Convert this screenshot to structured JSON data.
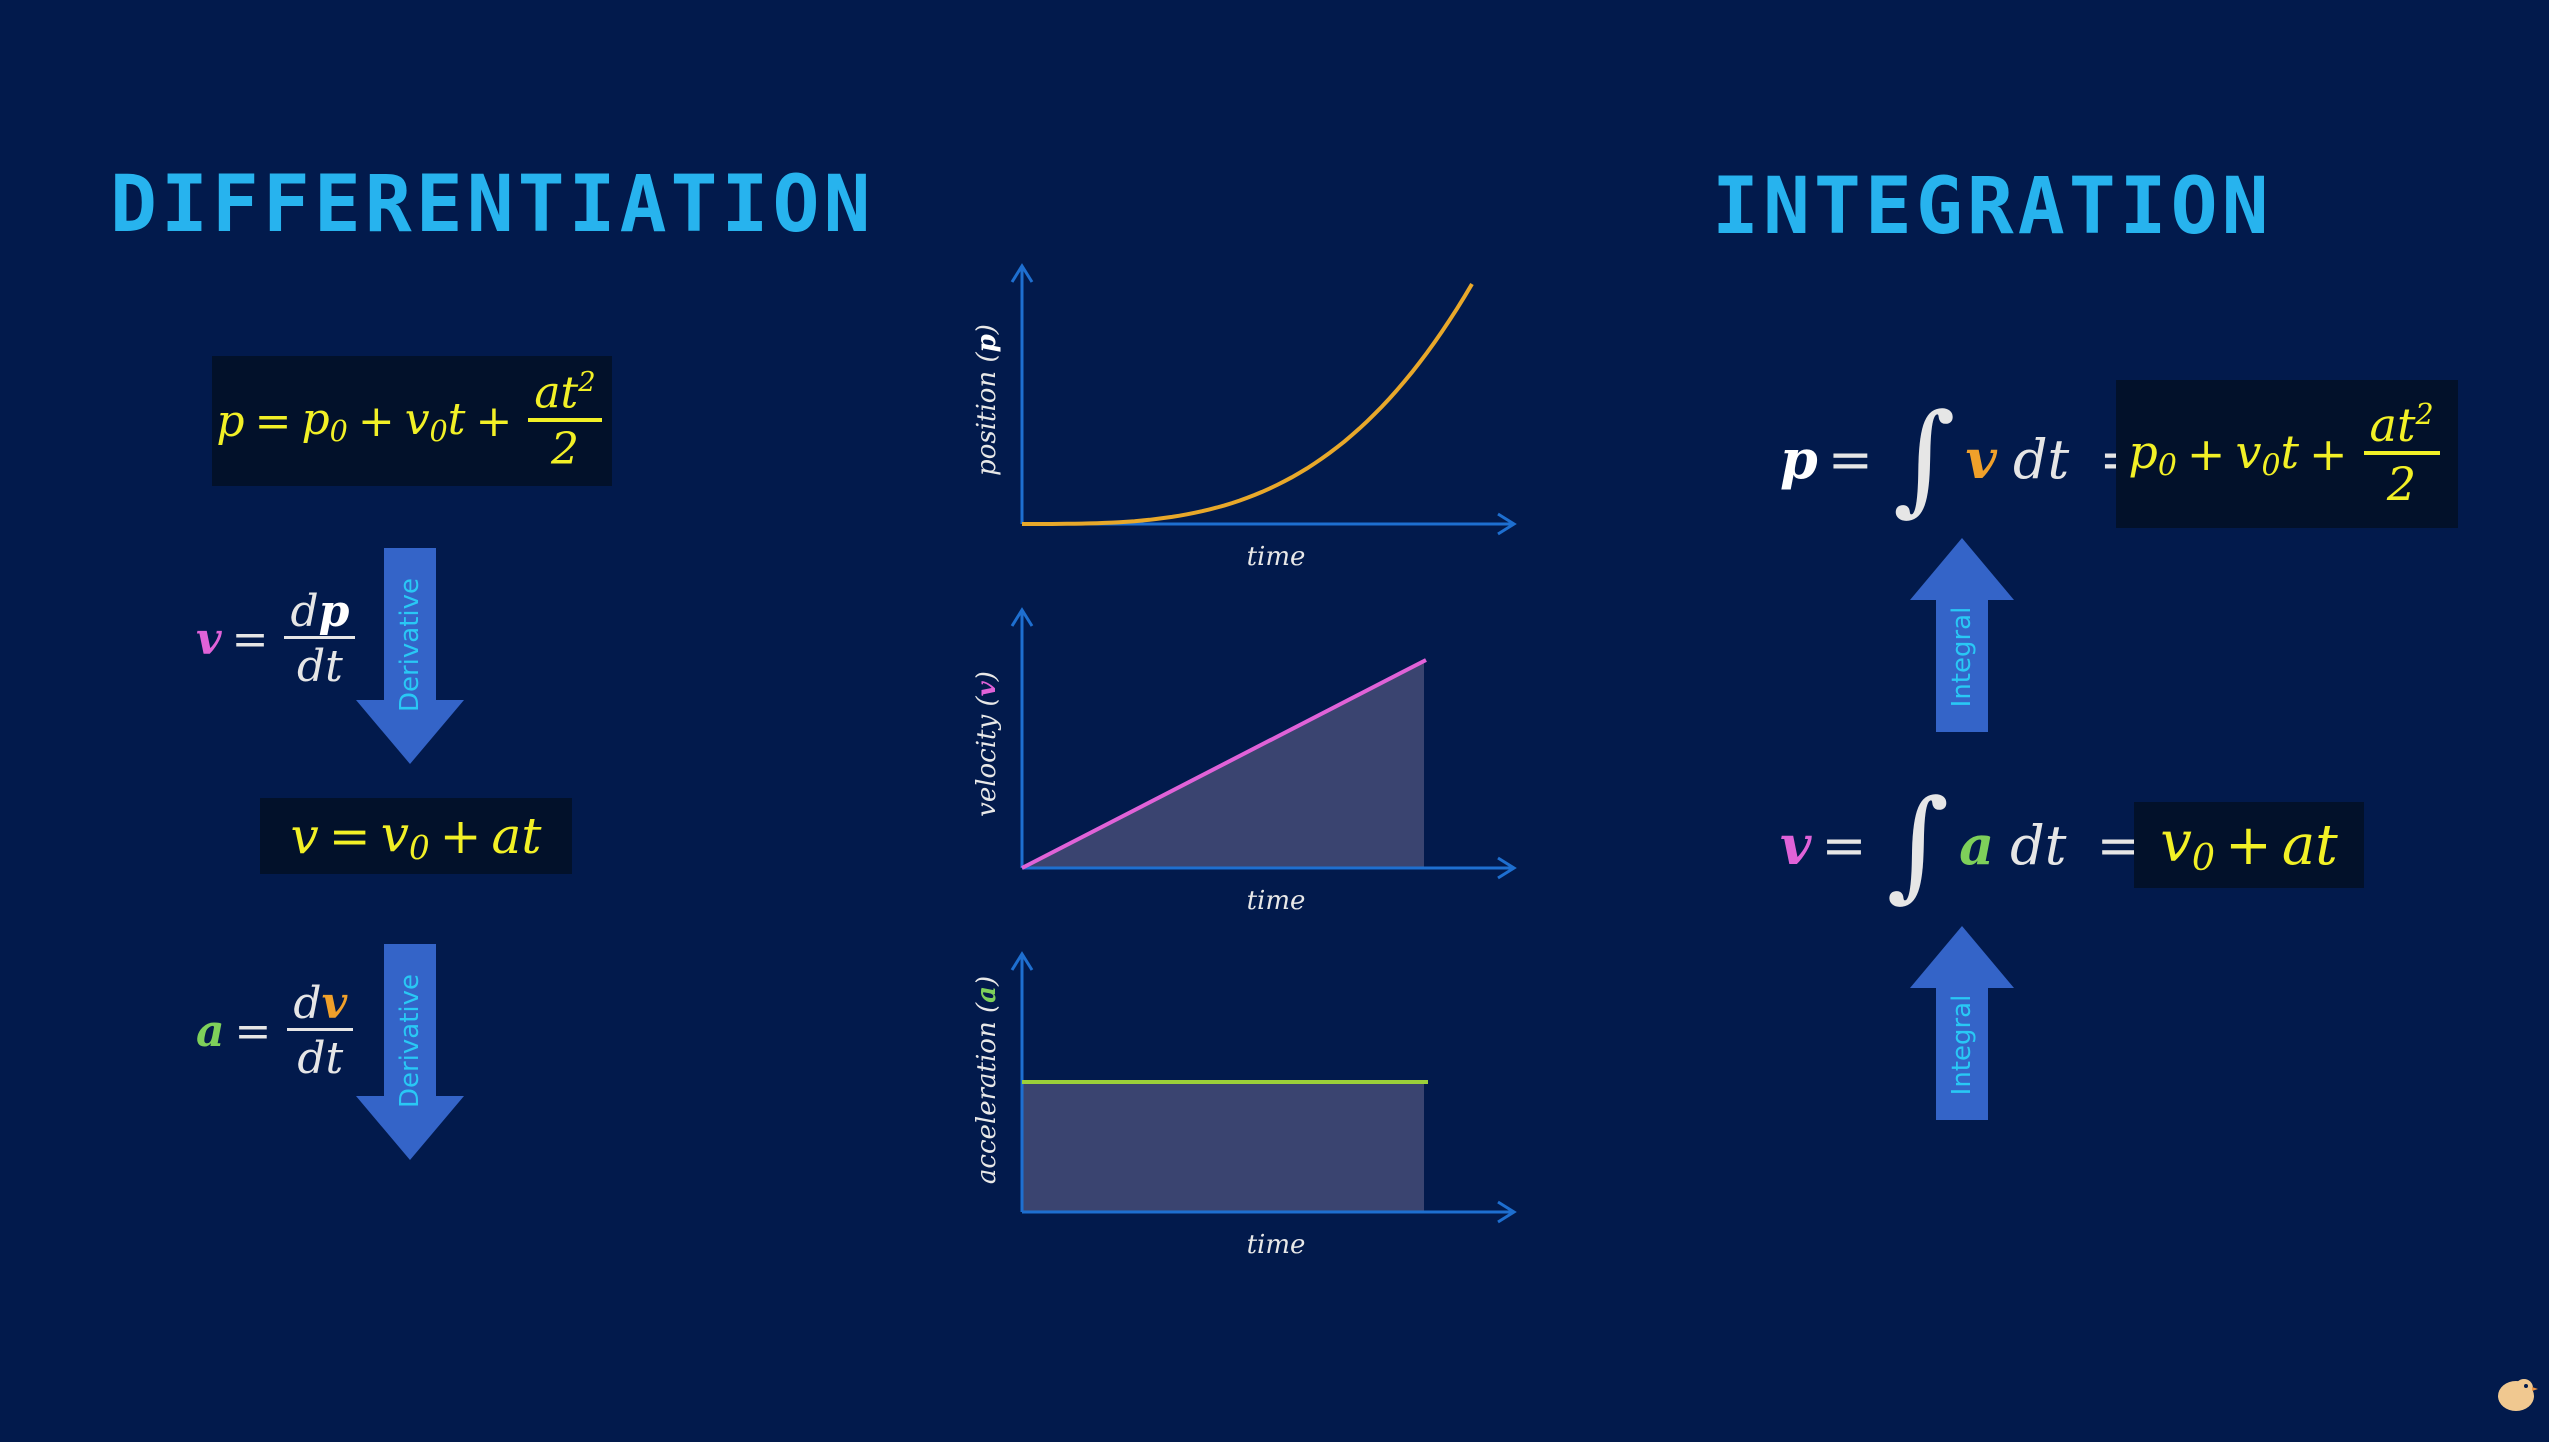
{
  "headings": {
    "differentiation": "DIFFERENTIATION",
    "integration": "INTEGRATION"
  },
  "left": {
    "position_eq": {
      "lhs": "p",
      "eq": "=",
      "p0": "p",
      "p0_sub": "0",
      "plus1": "+",
      "v0": "v",
      "v0_sub": "0",
      "t": "t",
      "plus2": "+",
      "num": "at",
      "num_sup": "2",
      "den": "2"
    },
    "velocity_def": {
      "lhs": "v",
      "eq": "=",
      "num_d": "d",
      "num_var": "p",
      "den": "dt"
    },
    "velocity_eq": {
      "lhs": "v",
      "eq": "=",
      "v0": "v",
      "v0_sub": "0",
      "plus": "+",
      "rest": "at"
    },
    "accel_def": {
      "lhs": "a",
      "eq": "=",
      "num_d": "d",
      "num_var": "v",
      "den": "dt"
    },
    "arrow_label": "Derivative"
  },
  "charts": {
    "x_label": "time",
    "items": [
      {
        "y_label_prefix": "position (",
        "y_label_var": "p",
        "y_label_suffix": ")",
        "color": "#e8a82a",
        "type": "curve"
      },
      {
        "y_label_prefix": "velocity (",
        "y_label_var": "v",
        "y_label_suffix": ")",
        "color": "#e062d8",
        "type": "line"
      },
      {
        "y_label_prefix": "acceleration (",
        "y_label_var": "a",
        "y_label_suffix": ")",
        "color": "#9bd03a",
        "type": "flat"
      }
    ],
    "axis_color": "#1e6fd0",
    "fill_color": "#3a4470"
  },
  "right": {
    "position_int": {
      "lhs": "p",
      "eq": "=",
      "integral": "∫",
      "var": "v",
      "dt": "dt",
      "eq2": "=",
      "p0": "p",
      "p0_sub": "0",
      "plus1": "+",
      "v0": "v",
      "v0_sub": "0",
      "t": "t",
      "plus2": "+",
      "num": "at",
      "num_sup": "2",
      "den": "2"
    },
    "velocity_int": {
      "lhs": "v",
      "eq": "=",
      "integral": "∫",
      "var": "a",
      "dt": "dt",
      "eq2": "=",
      "v0": "v",
      "v0_sub": "0",
      "plus": "+",
      "rest": "at"
    },
    "arrow_label": "Integral"
  },
  "colors": {
    "background": "#021a4c",
    "heading": "#27b3ee",
    "eq_yellow": "#f2f026",
    "arrow_blue": "#3464c8"
  },
  "icons": {
    "logo": "bird-logo-icon"
  }
}
